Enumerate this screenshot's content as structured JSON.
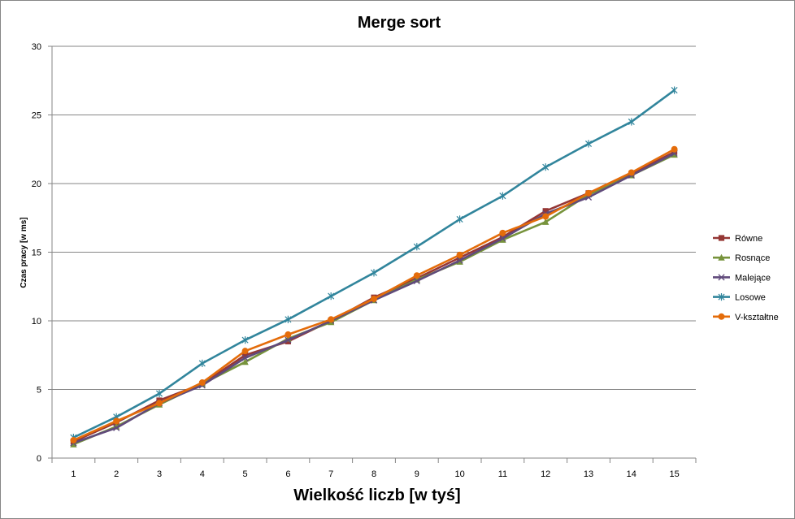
{
  "chart_data": {
    "type": "line",
    "title": "Merge sort",
    "xlabel": "Wielkość liczb [w tyś]",
    "ylabel": "Czas pracy [w ms]",
    "categories": [
      "1",
      "2",
      "3",
      "4",
      "5",
      "6",
      "7",
      "8",
      "9",
      "10",
      "11",
      "12",
      "13",
      "14",
      "15"
    ],
    "ylim": [
      0,
      30
    ],
    "yticks": [
      "0",
      "5",
      "10",
      "15",
      "20",
      "25",
      "30"
    ],
    "grid": true,
    "legend_position": "right",
    "series": [
      {
        "name": "Równe",
        "color": "#953735",
        "marker": "square",
        "values": [
          1.2,
          2.6,
          4.2,
          5.4,
          7.5,
          8.5,
          10.0,
          11.7,
          13.1,
          14.6,
          16.1,
          18.0,
          19.3,
          20.7,
          22.3
        ]
      },
      {
        "name": "Rosnące",
        "color": "#77933C",
        "marker": "triangle",
        "values": [
          1.0,
          2.3,
          3.9,
          5.4,
          7.0,
          8.7,
          9.9,
          11.5,
          13.0,
          14.3,
          15.9,
          17.2,
          19.2,
          20.6,
          22.1
        ]
      },
      {
        "name": "Malejące",
        "color": "#604A7B",
        "marker": "x",
        "values": [
          1.1,
          2.2,
          4.0,
          5.3,
          7.3,
          8.6,
          10.0,
          11.5,
          12.9,
          14.4,
          16.0,
          17.8,
          19.0,
          20.6,
          22.2
        ]
      },
      {
        "name": "Losowe",
        "color": "#31859C",
        "marker": "star",
        "values": [
          1.5,
          3.0,
          4.7,
          6.9,
          8.6,
          10.1,
          11.8,
          13.5,
          15.4,
          17.4,
          19.1,
          21.2,
          22.9,
          24.5,
          26.8
        ]
      },
      {
        "name": "V-kształtne",
        "color": "#E46C0A",
        "marker": "circle",
        "values": [
          1.3,
          2.7,
          4.0,
          5.5,
          7.8,
          9.0,
          10.1,
          11.6,
          13.3,
          14.8,
          16.4,
          17.6,
          19.3,
          20.8,
          22.5
        ]
      }
    ]
  }
}
